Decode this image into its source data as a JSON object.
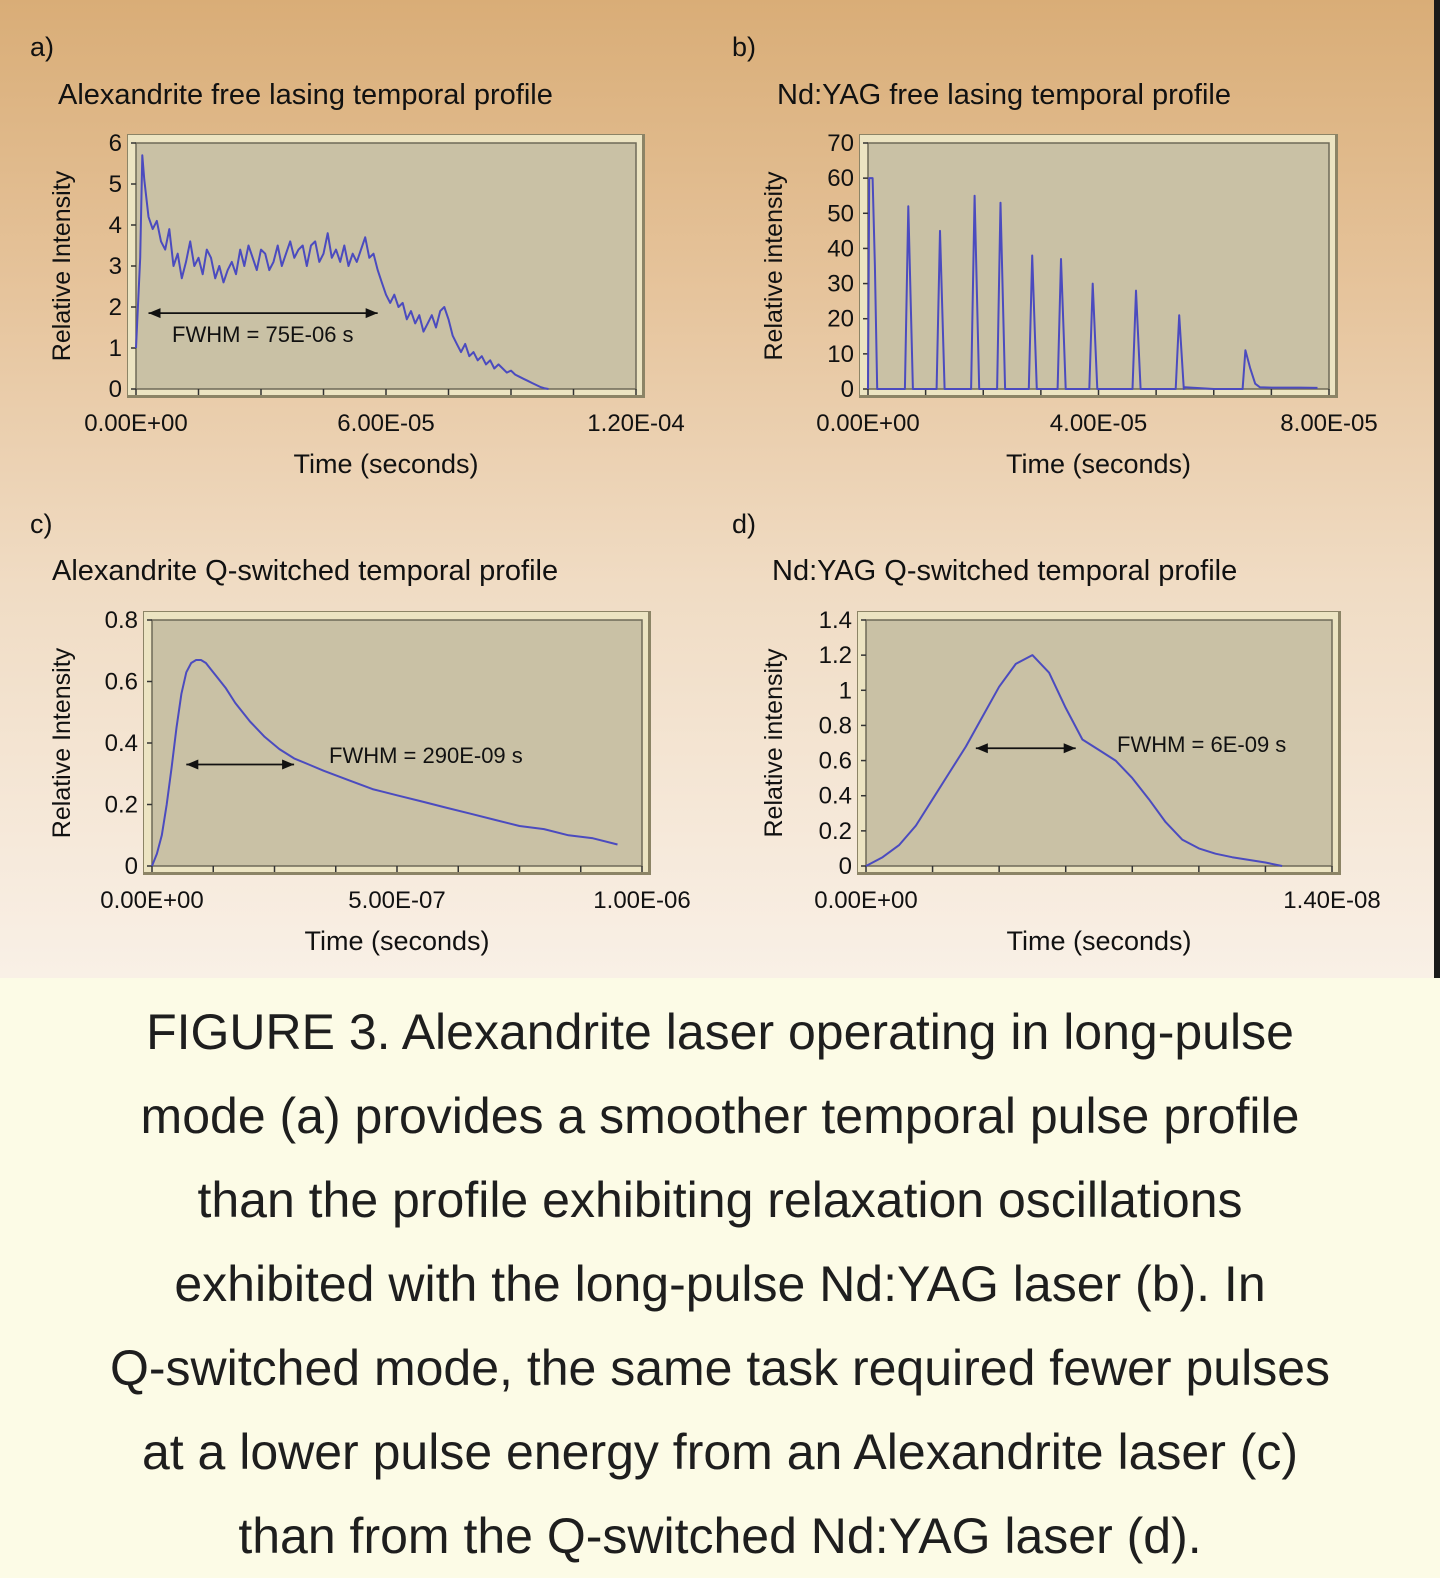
{
  "chart_data": [
    {
      "type": "line",
      "panel": "a)",
      "title": "Alexandrite free lasing temporal profile",
      "xlabel": "Time (seconds)",
      "ylabel": "Relative Intensity",
      "xlim": [
        0,
        0.00012
      ],
      "ylim": [
        0,
        6
      ],
      "x_ticks": [
        0,
        6e-05,
        0.00012
      ],
      "x_tick_labels": [
        "0.00E+00",
        "6.00E-05",
        "1.20E-04"
      ],
      "y_ticks": [
        0,
        1,
        2,
        3,
        4,
        5,
        6
      ],
      "y_tick_labels": [
        "0",
        "1",
        "2",
        "3",
        "4",
        "5",
        "6"
      ],
      "annotation": "FWHM = 75E-06 s",
      "fwhm_arrow": {
        "x": [
          3e-06,
          5.8e-05
        ],
        "y": 1.85
      },
      "series": [
        {
          "color": "#4b4bbf",
          "x": [
            0.0,
            1e-06,
            1.5e-06,
            2e-06,
            3e-06,
            4e-06,
            5e-06,
            6e-06,
            7e-06,
            8e-06,
            9e-06,
            1e-05,
            1.1e-05,
            1.2e-05,
            1.3e-05,
            1.4e-05,
            1.5e-05,
            1.6e-05,
            1.7e-05,
            1.8e-05,
            1.9e-05,
            2e-05,
            2.1e-05,
            2.2e-05,
            2.3e-05,
            2.4e-05,
            2.5e-05,
            2.6e-05,
            2.7e-05,
            2.8e-05,
            2.9e-05,
            3e-05,
            3.1e-05,
            3.2e-05,
            3.3e-05,
            3.4e-05,
            3.5e-05,
            3.6e-05,
            3.7e-05,
            3.8e-05,
            3.9e-05,
            4e-05,
            4.1e-05,
            4.2e-05,
            4.3e-05,
            4.4e-05,
            4.5e-05,
            4.6e-05,
            4.7e-05,
            4.8e-05,
            4.9e-05,
            5e-05,
            5.1e-05,
            5.2e-05,
            5.3e-05,
            5.4e-05,
            5.5e-05,
            5.6e-05,
            5.7e-05,
            5.8e-05,
            5.9e-05,
            6e-05,
            6.1e-05,
            6.2e-05,
            6.3e-05,
            6.4e-05,
            6.5e-05,
            6.6e-05,
            6.7e-05,
            6.8e-05,
            6.9e-05,
            7e-05,
            7.1e-05,
            7.2e-05,
            7.3e-05,
            7.4e-05,
            7.5e-05,
            7.6e-05,
            7.7e-05,
            7.8e-05,
            7.9e-05,
            8e-05,
            8.1e-05,
            8.2e-05,
            8.3e-05,
            8.4e-05,
            8.5e-05,
            8.6e-05,
            8.7e-05,
            8.8e-05,
            8.9e-05,
            9e-05,
            9.1e-05,
            9.2e-05,
            9.3e-05,
            9.4e-05,
            9.5e-05,
            9.6e-05,
            9.7e-05,
            9.8e-05,
            9.9e-05
          ],
          "y": [
            1.0,
            3.2,
            5.7,
            5.1,
            4.2,
            3.9,
            4.1,
            3.6,
            3.4,
            3.9,
            3.0,
            3.3,
            2.7,
            3.1,
            3.6,
            3.0,
            3.2,
            2.8,
            3.4,
            3.2,
            2.7,
            3.0,
            2.6,
            2.9,
            3.1,
            2.8,
            3.4,
            3.0,
            3.5,
            3.2,
            2.9,
            3.4,
            3.3,
            2.9,
            3.1,
            3.5,
            3.0,
            3.3,
            3.6,
            3.2,
            3.4,
            3.5,
            3.0,
            3.5,
            3.6,
            3.1,
            3.3,
            3.8,
            3.2,
            3.4,
            3.1,
            3.5,
            3.0,
            3.3,
            3.1,
            3.4,
            3.7,
            3.2,
            3.3,
            2.9,
            2.6,
            2.3,
            2.1,
            2.3,
            2.0,
            2.1,
            1.7,
            1.9,
            1.6,
            1.8,
            1.4,
            1.6,
            1.8,
            1.5,
            1.9,
            2.0,
            1.7,
            1.3,
            1.1,
            0.9,
            1.1,
            0.8,
            0.9,
            0.7,
            0.8,
            0.6,
            0.7,
            0.5,
            0.6,
            0.5,
            0.4,
            0.45,
            0.35,
            0.3,
            0.25,
            0.2,
            0.15,
            0.1,
            0.05,
            0.02,
            0.0
          ]
        }
      ]
    },
    {
      "type": "line",
      "panel": "b)",
      "title": "Nd:YAG free lasing temporal profile",
      "xlabel": "Time (seconds)",
      "ylabel": "Relative intensity",
      "xlim": [
        0,
        8e-05
      ],
      "ylim": [
        0,
        70
      ],
      "x_ticks": [
        0,
        4e-05,
        8e-05
      ],
      "x_tick_labels": [
        "0.00E+00",
        "4.00E-05",
        "8.00E-05"
      ],
      "y_ticks": [
        0,
        10,
        20,
        30,
        40,
        50,
        60,
        70
      ],
      "y_tick_labels": [
        "0",
        "10",
        "20",
        "30",
        "40",
        "50",
        "60",
        "70"
      ],
      "spike_times": [
        8e-07,
        7e-06,
        1.25e-05,
        1.85e-05,
        2.3e-05,
        2.85e-05,
        3.35e-05,
        3.9e-05,
        4.65e-05,
        5.4e-05,
        6.55e-05
      ],
      "spike_peaks": [
        60,
        52,
        45,
        55,
        53,
        38,
        37,
        30,
        28,
        21,
        11
      ],
      "series": [
        {
          "color": "#4b4bbf",
          "x": [
            0.0,
            2e-07,
            4e-07,
            8e-07,
            1.2e-06,
            1.6e-06,
            2e-06,
            6.4e-06,
            7e-06,
            7.8e-06,
            1.19e-05,
            1.25e-05,
            1.33e-05,
            1.79e-05,
            1.85e-05,
            1.93e-05,
            2.24e-05,
            2.3e-05,
            2.38e-05,
            2.79e-05,
            2.85e-05,
            2.93e-05,
            3.29e-05,
            3.35e-05,
            3.43e-05,
            3.84e-05,
            3.9e-05,
            3.98e-05,
            4.59e-05,
            4.65e-05,
            4.73e-05,
            5.34e-05,
            5.4e-05,
            5.48e-05,
            5.5e-05,
            6e-05,
            6.5e-05,
            6.55e-05,
            6.63e-05,
            6.72e-05,
            6.8e-05,
            7e-05,
            7.5e-05,
            7.8e-05
          ],
          "y": [
            0,
            60,
            60,
            60,
            35,
            0,
            0,
            0,
            52,
            0,
            0,
            45,
            0,
            0,
            55,
            0,
            0,
            53,
            0,
            0,
            38,
            0,
            0,
            37,
            0,
            0,
            30,
            0,
            0,
            28,
            0,
            0,
            21,
            0,
            0.5,
            0,
            0,
            11,
            6,
            1.5,
            0.5,
            0.4,
            0.4,
            0.3
          ]
        }
      ]
    },
    {
      "type": "line",
      "panel": "c)",
      "title": "Alexandrite Q-switched temporal profile",
      "xlabel": "Time (seconds)",
      "ylabel": "Relative Intensity",
      "xlim": [
        0,
        1e-06
      ],
      "ylim": [
        0,
        0.8
      ],
      "x_ticks": [
        0,
        5e-07,
        1e-06
      ],
      "x_tick_labels": [
        "0.00E+00",
        "5.00E-07",
        "1.00E-06"
      ],
      "y_ticks": [
        0,
        0.2,
        0.4,
        0.6,
        0.8
      ],
      "y_tick_labels": [
        "0",
        "0.2",
        "0.4",
        "0.6",
        "0.8"
      ],
      "annotation": "FWHM = 290E-09 s",
      "fwhm_arrow": {
        "x": [
          7e-08,
          2.9e-07
        ],
        "y": 0.33
      },
      "series": [
        {
          "color": "#4b4bbf",
          "x": [
            0.0,
            1e-08,
            2e-08,
            3e-08,
            4e-08,
            5e-08,
            6e-08,
            7e-08,
            8e-08,
            9e-08,
            1e-07,
            1.1e-07,
            1.2e-07,
            1.3e-07,
            1.5e-07,
            1.7e-07,
            2e-07,
            2.3e-07,
            2.6e-07,
            2.9e-07,
            3.2e-07,
            3.5e-07,
            4e-07,
            4.5e-07,
            5e-07,
            5.5e-07,
            6e-07,
            6.5e-07,
            7e-07,
            7.5e-07,
            8e-07,
            8.5e-07,
            9e-07,
            9.5e-07
          ],
          "y": [
            0.0,
            0.04,
            0.1,
            0.2,
            0.32,
            0.45,
            0.56,
            0.63,
            0.66,
            0.67,
            0.67,
            0.66,
            0.64,
            0.62,
            0.58,
            0.53,
            0.47,
            0.42,
            0.38,
            0.35,
            0.33,
            0.31,
            0.28,
            0.25,
            0.23,
            0.21,
            0.19,
            0.17,
            0.15,
            0.13,
            0.12,
            0.1,
            0.09,
            0.07
          ]
        }
      ]
    },
    {
      "type": "line",
      "panel": "d)",
      "title": "Nd:YAG Q-switched temporal profile",
      "xlabel": "Time (seconds)",
      "ylabel": "Relative intensity",
      "xlim": [
        0,
        1.4e-08
      ],
      "ylim": [
        0,
        1.4
      ],
      "x_ticks": [
        0,
        1.4e-08
      ],
      "x_tick_labels": [
        "0.00E+00",
        "1.40E-08"
      ],
      "y_ticks": [
        0,
        0.2,
        0.4,
        0.6,
        0.8,
        1,
        1.2,
        1.4
      ],
      "y_tick_labels": [
        "0",
        "0.2",
        "0.4",
        "0.6",
        "0.8",
        "1",
        "1.2",
        "1.4"
      ],
      "annotation": "FWHM = 6E-09 s",
      "fwhm_arrow": {
        "x": [
          3.3e-09,
          6.3e-09
        ],
        "y": 0.67
      },
      "series": [
        {
          "color": "#4b4bbf",
          "x": [
            0.0,
            5e-10,
            1e-09,
            1.5e-09,
            2e-09,
            2.5e-09,
            3e-09,
            3.5e-09,
            4e-09,
            4.5e-09,
            5e-09,
            5.5e-09,
            6e-09,
            6.5e-09,
            7e-09,
            7.5e-09,
            8e-09,
            8.5e-09,
            9e-09,
            9.5e-09,
            1e-08,
            1.05e-08,
            1.1e-08,
            1.2e-08,
            1.25e-08
          ],
          "y": [
            0.0,
            0.05,
            0.12,
            0.23,
            0.38,
            0.53,
            0.68,
            0.85,
            1.02,
            1.15,
            1.2,
            1.1,
            0.9,
            0.72,
            0.66,
            0.6,
            0.5,
            0.38,
            0.25,
            0.15,
            0.1,
            0.07,
            0.05,
            0.02,
            0.0
          ]
        }
      ]
    }
  ],
  "caption": {
    "lines": [
      "FIGURE 3. Alexandrite laser operating in long-pulse",
      "mode (a) provides a smoother temporal pulse profile",
      "than the profile exhibiting relaxation oscillations",
      "exhibited with the long-pulse Nd:YAG laser (b). In",
      "Q-switched mode, the same task required fewer pulses",
      "at a lower pulse energy from an Alexandrite laser (c)",
      "than from the Q-switched Nd:YAG laser (d)."
    ]
  },
  "colors": {
    "plot_area": "#c9c1a5",
    "frame": "#ece4c2",
    "frame_shadow": "#8c8466",
    "series": "#4b4bbf",
    "caption_background": "#fcfbe6"
  }
}
